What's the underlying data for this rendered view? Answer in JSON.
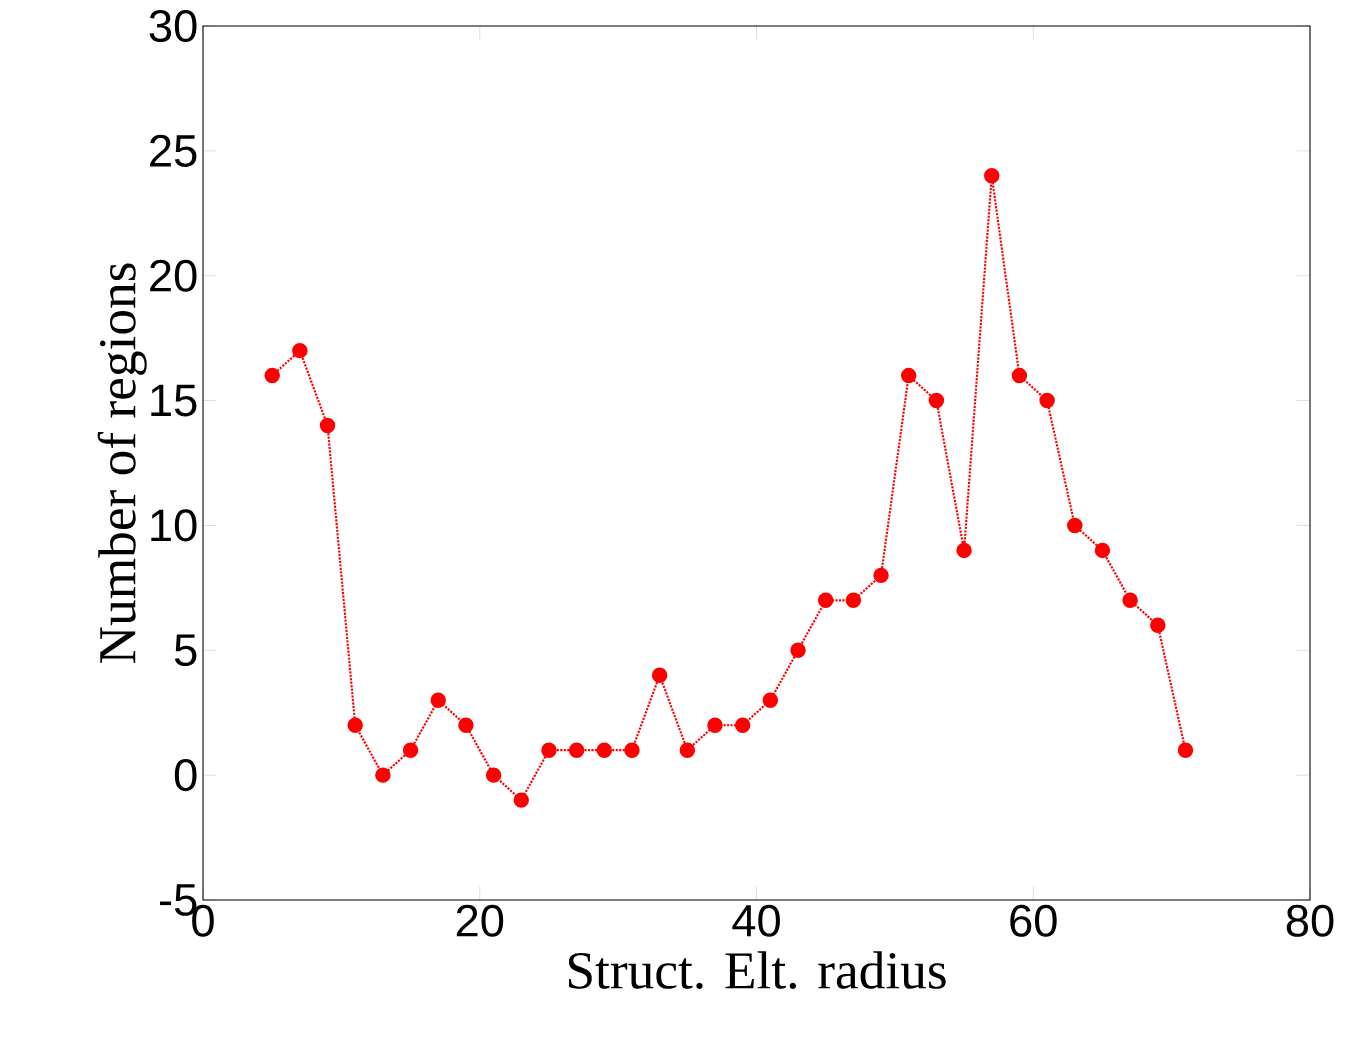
{
  "chart_data": {
    "type": "line",
    "xlabel": "Struct. Elt. radius",
    "ylabel": "Number of regions",
    "x": [
      5,
      7,
      9,
      11,
      13,
      15,
      17,
      19,
      21,
      23,
      25,
      27,
      29,
      31,
      33,
      35,
      37,
      39,
      41,
      43,
      45,
      47,
      49,
      51,
      53,
      55,
      57,
      59,
      61,
      63,
      65,
      67,
      69,
      71
    ],
    "series": [
      {
        "color": "#ff0000",
        "values": [
          16,
          17,
          14,
          2,
          0,
          1,
          3,
          2,
          0,
          -1,
          1,
          1,
          1,
          1,
          4,
          1,
          2,
          2,
          3,
          5,
          7,
          7,
          8,
          16,
          15,
          9,
          24,
          16,
          15,
          10,
          9,
          7,
          6,
          1
        ]
      }
    ],
    "xlim": [
      0,
      80
    ],
    "xticks": [
      0,
      20,
      40,
      60,
      80
    ],
    "ylim": [
      -5,
      30
    ],
    "yticks": [
      -5,
      0,
      5,
      10,
      15,
      20,
      25,
      30
    ],
    "marker": "circle",
    "line_style": "dotted",
    "grid": false
  }
}
